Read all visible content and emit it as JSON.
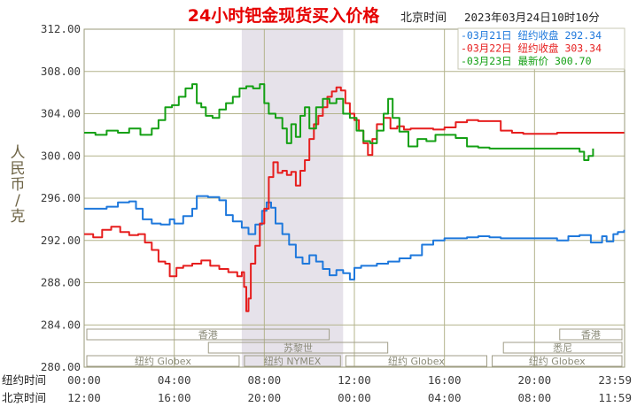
{
  "chart_data": {
    "type": "line",
    "title": "24小时钯金现货买入价格",
    "timezone_label": "北京时间",
    "timestamp": "2023年03月24日10时10分",
    "ylabel": "人民币/克",
    "ylim": [
      280,
      312
    ],
    "y_ticks": [
      "312.00",
      "308.00",
      "304.00",
      "300.00",
      "296.00",
      "292.00",
      "288.00",
      "284.00",
      "280.00"
    ],
    "x_range_hours": [
      0,
      24
    ],
    "x_row1_label": "纽约时间",
    "x_row1_ticks": [
      "00:00",
      "04:00",
      "08:00",
      "12:00",
      "16:00",
      "20:00",
      "23:59"
    ],
    "x_row2_label": "北京时间",
    "x_row2_ticks": [
      "12:00",
      "16:00",
      "20:00",
      "00:00",
      "04:00",
      "08:00",
      "11:59"
    ],
    "highlight_hours": [
      7,
      11.5
    ],
    "colors": {
      "blue": "#1e78dc",
      "red": "#e61e1e",
      "green": "#14a014",
      "grid": "#b4b48c",
      "axis_text": "#3c3c3c",
      "title": "#e60000",
      "highlight": "#e6e2ea",
      "ylabel": "#6e6446"
    },
    "series": [
      {
        "name": "03月21日",
        "legend": "-03月21日  纽约收盘 292.34",
        "color": "#1e78dc",
        "points": [
          [
            0,
            295.0
          ],
          [
            0.5,
            295.0
          ],
          [
            1,
            295.2
          ],
          [
            1.5,
            295.6
          ],
          [
            2,
            295.7
          ],
          [
            2.3,
            295.0
          ],
          [
            2.6,
            294.0
          ],
          [
            3,
            293.6
          ],
          [
            3.4,
            293.5
          ],
          [
            3.8,
            294.0
          ],
          [
            4,
            293.6
          ],
          [
            4.4,
            294.3
          ],
          [
            4.8,
            295.0
          ],
          [
            5,
            296.2
          ],
          [
            5.5,
            296.1
          ],
          [
            6,
            295.8
          ],
          [
            6.3,
            294.4
          ],
          [
            6.6,
            293.8
          ],
          [
            7,
            293.2
          ],
          [
            7.3,
            292.6
          ],
          [
            7.6,
            293.5
          ],
          [
            7.9,
            294.8
          ],
          [
            8.1,
            295.6
          ],
          [
            8.3,
            295.1
          ],
          [
            8.5,
            293.6
          ],
          [
            8.8,
            292.6
          ],
          [
            9.1,
            291.6
          ],
          [
            9.4,
            290.4
          ],
          [
            9.7,
            289.8
          ],
          [
            10.0,
            290.6
          ],
          [
            10.3,
            290.0
          ],
          [
            10.6,
            289.3
          ],
          [
            10.9,
            288.7
          ],
          [
            11.2,
            289.2
          ],
          [
            11.5,
            288.9
          ],
          [
            11.8,
            288.3
          ],
          [
            12.0,
            289.4
          ],
          [
            12.3,
            289.6
          ],
          [
            12.6,
            289.6
          ],
          [
            13,
            289.8
          ],
          [
            13.5,
            290.0
          ],
          [
            14,
            290.3
          ],
          [
            14.5,
            290.6
          ],
          [
            15,
            291.6
          ],
          [
            15.5,
            292.0
          ],
          [
            16,
            292.2
          ],
          [
            16.5,
            292.2
          ],
          [
            17,
            292.3
          ],
          [
            17.5,
            292.4
          ],
          [
            18,
            292.3
          ],
          [
            18.5,
            292.2
          ],
          [
            19,
            292.2
          ],
          [
            19.5,
            292.2
          ],
          [
            20,
            292.2
          ],
          [
            20.5,
            292.2
          ],
          [
            21,
            292.0
          ],
          [
            21.5,
            292.4
          ],
          [
            22,
            292.5
          ],
          [
            22.5,
            291.8
          ],
          [
            23,
            292.4
          ],
          [
            23.2,
            291.9
          ],
          [
            23.5,
            292.6
          ],
          [
            23.7,
            292.8
          ],
          [
            23.98,
            293.0
          ]
        ]
      },
      {
        "name": "03月22日",
        "legend": "-03月22日  纽约收盘 303.34",
        "color": "#e61e1e",
        "points": [
          [
            0,
            292.6
          ],
          [
            0.4,
            292.3
          ],
          [
            0.8,
            293.0
          ],
          [
            1.2,
            293.3
          ],
          [
            1.6,
            292.8
          ],
          [
            2,
            292.5
          ],
          [
            2.4,
            292.6
          ],
          [
            2.7,
            291.8
          ],
          [
            3,
            291.1
          ],
          [
            3.3,
            290.0
          ],
          [
            3.6,
            289.8
          ],
          [
            3.8,
            288.6
          ],
          [
            4.1,
            289.4
          ],
          [
            4.4,
            289.6
          ],
          [
            4.8,
            289.8
          ],
          [
            5.2,
            290.1
          ],
          [
            5.6,
            289.6
          ],
          [
            6,
            289.3
          ],
          [
            6.4,
            289.0
          ],
          [
            6.8,
            288.6
          ],
          [
            7.0,
            289.0
          ],
          [
            7.1,
            287.6
          ],
          [
            7.2,
            285.3
          ],
          [
            7.3,
            286.5
          ],
          [
            7.4,
            289.8
          ],
          [
            7.6,
            291.5
          ],
          [
            7.8,
            293.6
          ],
          [
            8.0,
            295.0
          ],
          [
            8.2,
            298.0
          ],
          [
            8.4,
            299.4
          ],
          [
            8.6,
            298.4
          ],
          [
            8.8,
            298.6
          ],
          [
            9.0,
            298.2
          ],
          [
            9.2,
            298.5
          ],
          [
            9.4,
            297.2
          ],
          [
            9.6,
            298.6
          ],
          [
            9.8,
            299.6
          ],
          [
            10.0,
            301.6
          ],
          [
            10.2,
            303.0
          ],
          [
            10.4,
            303.8
          ],
          [
            10.6,
            304.6
          ],
          [
            10.8,
            305.6
          ],
          [
            11.0,
            306.1
          ],
          [
            11.2,
            306.5
          ],
          [
            11.4,
            306.2
          ],
          [
            11.6,
            305.0
          ],
          [
            11.8,
            304.0
          ],
          [
            12.0,
            303.4
          ],
          [
            12.2,
            302.4
          ],
          [
            12.4,
            301.2
          ],
          [
            12.6,
            300.1
          ],
          [
            12.8,
            301.6
          ],
          [
            13,
            303.0
          ],
          [
            13.3,
            303.6
          ],
          [
            13.6,
            302.6
          ],
          [
            13.9,
            302.8
          ],
          [
            14.2,
            302.5
          ],
          [
            14.5,
            302.6
          ],
          [
            15,
            302.6
          ],
          [
            15.5,
            302.5
          ],
          [
            16,
            302.7
          ],
          [
            16.5,
            303.2
          ],
          [
            17,
            303.4
          ],
          [
            17.5,
            303.3
          ],
          [
            18,
            303.3
          ],
          [
            18.5,
            302.4
          ],
          [
            19,
            302.2
          ],
          [
            19.5,
            302.1
          ],
          [
            20,
            302.1
          ],
          [
            20.5,
            302.1
          ],
          [
            21,
            302.2
          ],
          [
            21.5,
            302.2
          ],
          [
            22,
            302.2
          ],
          [
            22.5,
            302.2
          ],
          [
            23,
            302.2
          ],
          [
            23.98,
            302.2
          ]
        ]
      },
      {
        "name": "03月23日",
        "legend": "-03月23日  最新价 300.70",
        "color": "#14a014",
        "points": [
          [
            0,
            302.2
          ],
          [
            0.5,
            302.0
          ],
          [
            1,
            302.4
          ],
          [
            1.5,
            302.2
          ],
          [
            2,
            302.6
          ],
          [
            2.5,
            302.0
          ],
          [
            3,
            302.6
          ],
          [
            3.3,
            303.4
          ],
          [
            3.6,
            304.6
          ],
          [
            3.9,
            304.8
          ],
          [
            4.2,
            305.6
          ],
          [
            4.5,
            306.4
          ],
          [
            4.8,
            306.8
          ],
          [
            5.0,
            305.0
          ],
          [
            5.2,
            304.6
          ],
          [
            5.4,
            303.8
          ],
          [
            5.7,
            303.6
          ],
          [
            6.0,
            304.4
          ],
          [
            6.3,
            305.0
          ],
          [
            6.6,
            305.6
          ],
          [
            6.9,
            306.4
          ],
          [
            7.2,
            306.6
          ],
          [
            7.5,
            306.4
          ],
          [
            7.8,
            306.8
          ],
          [
            8.0,
            305.0
          ],
          [
            8.2,
            304.0
          ],
          [
            8.5,
            303.6
          ],
          [
            8.8,
            302.6
          ],
          [
            9.0,
            301.2
          ],
          [
            9.2,
            303.0
          ],
          [
            9.4,
            301.8
          ],
          [
            9.6,
            303.8
          ],
          [
            9.8,
            304.6
          ],
          [
            10.0,
            302.6
          ],
          [
            10.3,
            304.6
          ],
          [
            10.6,
            305.4
          ],
          [
            10.9,
            305.0
          ],
          [
            11.2,
            305.4
          ],
          [
            11.5,
            304.0
          ],
          [
            11.8,
            303.6
          ],
          [
            12.1,
            302.4
          ],
          [
            12.4,
            301.4
          ],
          [
            12.7,
            301.2
          ],
          [
            13.0,
            302.4
          ],
          [
            13.3,
            304.0
          ],
          [
            13.5,
            305.4
          ],
          [
            13.7,
            303.6
          ],
          [
            14.0,
            302.3
          ],
          [
            14.4,
            300.9
          ],
          [
            14.8,
            301.6
          ],
          [
            15.2,
            301.4
          ],
          [
            15.6,
            302.0
          ],
          [
            16,
            302.0
          ],
          [
            16.5,
            301.7
          ],
          [
            17,
            300.9
          ],
          [
            17.5,
            300.8
          ],
          [
            18,
            300.7
          ],
          [
            18.5,
            300.7
          ],
          [
            19,
            300.7
          ],
          [
            19.5,
            300.7
          ],
          [
            20,
            300.7
          ],
          [
            20.5,
            300.7
          ],
          [
            21,
            300.7
          ],
          [
            21.5,
            300.7
          ],
          [
            22,
            300.4
          ],
          [
            22.2,
            299.6
          ],
          [
            22.4,
            300.0
          ],
          [
            22.6,
            300.7
          ]
        ]
      }
    ],
    "sessions": [
      {
        "name": "香港",
        "start_h": 0.0,
        "end_h": 11.0,
        "row": 1
      },
      {
        "name": "苏黎世",
        "start_h": 5.4,
        "end_h": 13.6,
        "row": 2
      },
      {
        "name": "纽约 Globex",
        "start_h": 0.0,
        "end_h": 7.0,
        "row": 3
      },
      {
        "name": "纽约 NYMEX",
        "start_h": 7.0,
        "end_h": 11.5,
        "row": 3
      },
      {
        "name": "纽约 Globex",
        "start_h": 11.5,
        "end_h": 18.0,
        "row": 3
      },
      {
        "name": "悉尼",
        "start_h": 18.5,
        "end_h": 24.0,
        "row": 2
      },
      {
        "name": "香港",
        "start_h": 21.0,
        "end_h": 24.0,
        "row": 1
      },
      {
        "name": "纽约 Globex",
        "start_h": 18.0,
        "end_h": 24.0,
        "row": 3
      }
    ]
  }
}
